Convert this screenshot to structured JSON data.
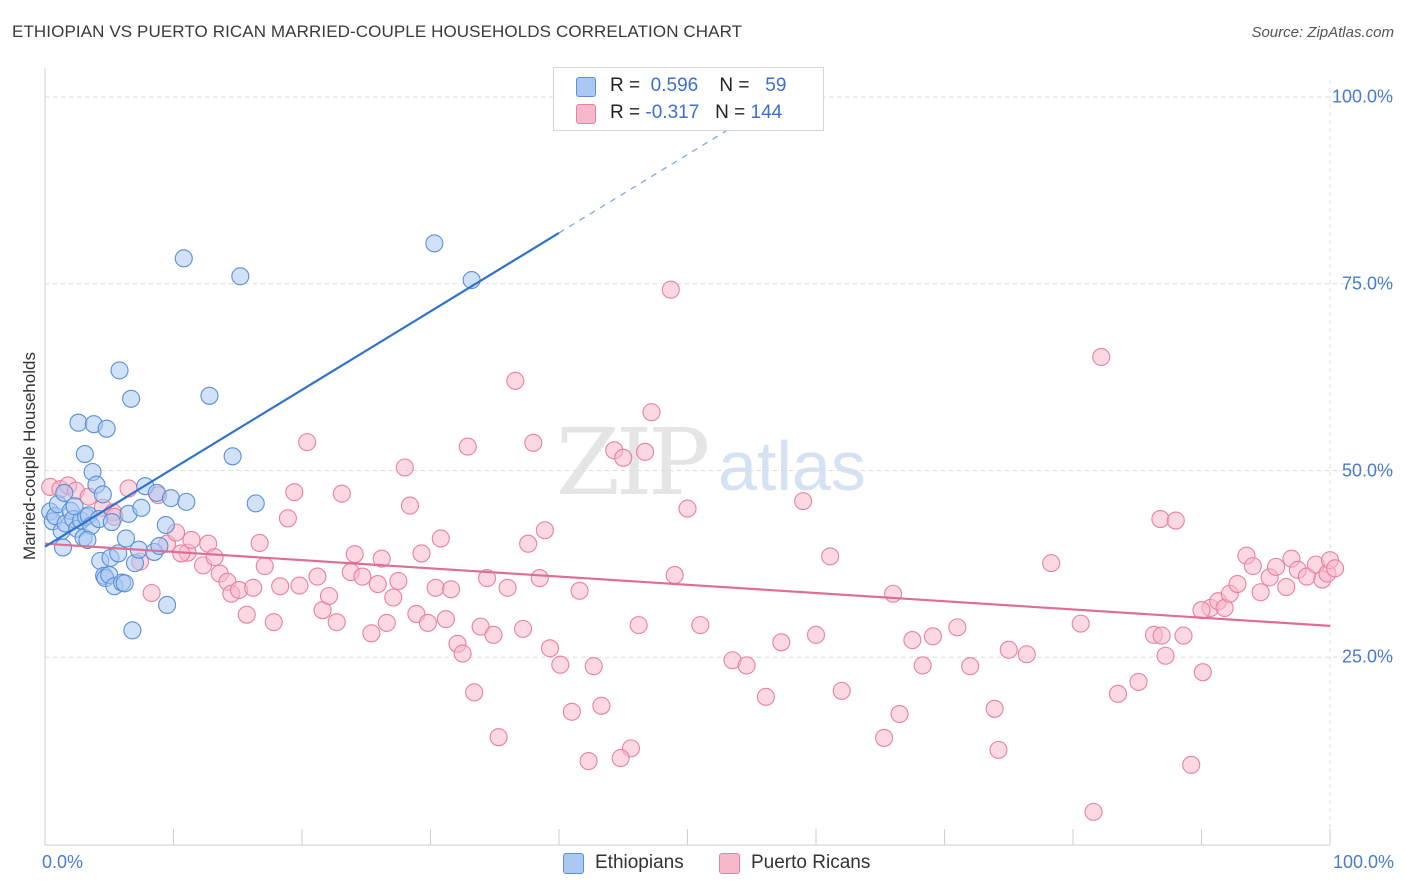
{
  "title": "ETHIOPIAN VS PUERTO RICAN MARRIED-COUPLE HOUSEHOLDS CORRELATION CHART",
  "source": "Source: ZipAtlas.com",
  "watermark": {
    "zip": "ZIP",
    "atlas": "atlas"
  },
  "colors": {
    "ethiopian_fill": "#aac8f2",
    "ethiopian_stroke": "#5b8fd6",
    "ethiopian_line": "#2f72cc",
    "puerto_fill": "#f7b8cb",
    "puerto_stroke": "#e8819f",
    "puerto_line": "#e06d93",
    "tick_text": "#4a7bd0",
    "grid": "#dcdcdc"
  },
  "legend": {
    "rows": [
      {
        "r_label": "R =",
        "r_value": "0.596",
        "n_label": "N =",
        "n_value": "59"
      },
      {
        "r_label": "R =",
        "r_value": "-0.317",
        "n_label": "N =",
        "n_value": "144"
      }
    ]
  },
  "bottom_legend": {
    "ethiopians": "Ethiopians",
    "puerto_ricans": "Puerto Ricans"
  },
  "chart_data": {
    "type": "scatter",
    "title": "ETHIOPIAN VS PUERTO RICAN MARRIED-COUPLE HOUSEHOLDS CORRELATION CHART",
    "xlabel": "",
    "ylabel": "Married-couple Households",
    "xlim": [
      0,
      100
    ],
    "ylim": [
      0,
      100
    ],
    "x_tick_labels": [
      "0.0%",
      "100.0%"
    ],
    "y_tick_labels": [
      "25.0%",
      "50.0%",
      "75.0%",
      "100.0%"
    ],
    "y_tick_values": [
      25,
      50,
      75,
      100
    ],
    "grid": "horizontal dashed",
    "legend_placement": "top-center",
    "series": [
      {
        "name": "Ethiopians",
        "r": 0.596,
        "n": 59,
        "trend": {
          "x": [
            0,
            40
          ],
          "y": [
            39.8,
            81.8
          ],
          "dashed_to": [
            100,
            105
          ]
        },
        "points": [
          [
            0.4,
            44.5
          ],
          [
            0.6,
            43.2
          ],
          [
            0.8,
            43.9
          ],
          [
            1.0,
            45.5
          ],
          [
            1.3,
            41.9
          ],
          [
            1.4,
            39.7
          ],
          [
            1.6,
            42.9
          ],
          [
            2.0,
            44.6
          ],
          [
            2.2,
            43.5
          ],
          [
            2.5,
            42.2
          ],
          [
            2.6,
            56.4
          ],
          [
            2.8,
            43.3
          ],
          [
            3.0,
            41.0
          ],
          [
            3.1,
            52.2
          ],
          [
            3.2,
            43.8
          ],
          [
            3.4,
            44.0
          ],
          [
            3.6,
            42.6
          ],
          [
            3.7,
            49.8
          ],
          [
            3.8,
            56.2
          ],
          [
            4.0,
            48.1
          ],
          [
            4.2,
            43.5
          ],
          [
            4.3,
            37.9
          ],
          [
            4.5,
            46.8
          ],
          [
            4.6,
            35.9
          ],
          [
            4.7,
            35.6
          ],
          [
            4.8,
            55.6
          ],
          [
            5.0,
            36.0
          ],
          [
            5.1,
            38.3
          ],
          [
            5.2,
            43.1
          ],
          [
            5.4,
            34.5
          ],
          [
            5.7,
            38.9
          ],
          [
            5.8,
            63.4
          ],
          [
            6.0,
            35.0
          ],
          [
            6.2,
            34.9
          ],
          [
            6.3,
            40.9
          ],
          [
            6.5,
            44.2
          ],
          [
            6.7,
            59.6
          ],
          [
            6.8,
            28.6
          ],
          [
            7.0,
            37.6
          ],
          [
            7.3,
            39.4
          ],
          [
            7.5,
            45.0
          ],
          [
            7.8,
            47.9
          ],
          [
            8.5,
            39.1
          ],
          [
            8.7,
            47.0
          ],
          [
            8.9,
            39.9
          ],
          [
            9.4,
            42.7
          ],
          [
            9.5,
            32.0
          ],
          [
            9.8,
            46.3
          ],
          [
            10.8,
            78.4
          ],
          [
            11.0,
            45.8
          ],
          [
            12.8,
            60.0
          ],
          [
            14.6,
            51.9
          ],
          [
            15.2,
            76.0
          ],
          [
            16.4,
            45.6
          ],
          [
            30.3,
            80.4
          ],
          [
            33.2,
            75.5
          ],
          [
            1.5,
            47.0
          ],
          [
            2.3,
            45.2
          ],
          [
            3.3,
            40.7
          ]
        ]
      },
      {
        "name": "Puerto Ricans",
        "r": -0.317,
        "n": 144,
        "trend": {
          "x": [
            0,
            100
          ],
          "y": [
            40.2,
            29.2
          ]
        },
        "points": [
          [
            0.4,
            47.8
          ],
          [
            1.2,
            47.5
          ],
          [
            1.8,
            48.0
          ],
          [
            2.4,
            47.3
          ],
          [
            3.4,
            46.5
          ],
          [
            4.5,
            45.0
          ],
          [
            5.3,
            44.4
          ],
          [
            5.4,
            43.8
          ],
          [
            6.5,
            47.6
          ],
          [
            7.4,
            37.8
          ],
          [
            8.3,
            33.6
          ],
          [
            8.8,
            46.7
          ],
          [
            9.5,
            40.2
          ],
          [
            10.2,
            41.7
          ],
          [
            11.1,
            39.0
          ],
          [
            11.4,
            40.7
          ],
          [
            12.3,
            37.3
          ],
          [
            12.7,
            40.2
          ],
          [
            13.2,
            38.4
          ],
          [
            13.6,
            36.2
          ],
          [
            14.2,
            35.1
          ],
          [
            14.5,
            33.5
          ],
          [
            15.1,
            34.0
          ],
          [
            15.7,
            30.7
          ],
          [
            16.2,
            34.3
          ],
          [
            16.7,
            40.3
          ],
          [
            17.1,
            37.2
          ],
          [
            17.8,
            29.7
          ],
          [
            18.3,
            34.5
          ],
          [
            18.9,
            43.6
          ],
          [
            19.4,
            47.1
          ],
          [
            19.8,
            34.6
          ],
          [
            20.4,
            53.8
          ],
          [
            21.2,
            35.8
          ],
          [
            21.6,
            31.3
          ],
          [
            22.1,
            33.2
          ],
          [
            22.7,
            29.7
          ],
          [
            23.1,
            46.9
          ],
          [
            23.8,
            36.4
          ],
          [
            24.1,
            38.8
          ],
          [
            24.7,
            35.8
          ],
          [
            25.4,
            28.2
          ],
          [
            25.9,
            34.8
          ],
          [
            26.2,
            38.2
          ],
          [
            26.6,
            29.6
          ],
          [
            27.1,
            33.0
          ],
          [
            27.5,
            35.2
          ],
          [
            28.0,
            50.4
          ],
          [
            28.4,
            45.3
          ],
          [
            28.9,
            30.8
          ],
          [
            29.3,
            38.9
          ],
          [
            29.8,
            29.6
          ],
          [
            30.4,
            34.3
          ],
          [
            30.8,
            40.9
          ],
          [
            31.2,
            30.1
          ],
          [
            31.6,
            34.1
          ],
          [
            32.1,
            26.8
          ],
          [
            32.5,
            25.5
          ],
          [
            32.9,
            53.2
          ],
          [
            33.4,
            20.3
          ],
          [
            33.9,
            29.1
          ],
          [
            34.4,
            35.6
          ],
          [
            34.9,
            28.0
          ],
          [
            35.3,
            14.3
          ],
          [
            36.0,
            34.3
          ],
          [
            36.6,
            62.0
          ],
          [
            37.2,
            28.8
          ],
          [
            37.6,
            40.2
          ],
          [
            38.0,
            53.7
          ],
          [
            38.5,
            35.6
          ],
          [
            38.9,
            42.0
          ],
          [
            39.3,
            26.2
          ],
          [
            40.1,
            24.0
          ],
          [
            41.0,
            17.7
          ],
          [
            41.6,
            33.9
          ],
          [
            42.3,
            11.1
          ],
          [
            42.7,
            23.8
          ],
          [
            43.3,
            18.5
          ],
          [
            44.3,
            52.7
          ],
          [
            45.0,
            51.7
          ],
          [
            45.6,
            12.8
          ],
          [
            46.2,
            29.3
          ],
          [
            46.7,
            52.5
          ],
          [
            47.2,
            57.8
          ],
          [
            48.7,
            74.2
          ],
          [
            50.0,
            44.9
          ],
          [
            51.0,
            29.3
          ],
          [
            53.5,
            24.6
          ],
          [
            54.6,
            23.9
          ],
          [
            56.1,
            19.7
          ],
          [
            57.3,
            27.0
          ],
          [
            59.0,
            45.9
          ],
          [
            61.1,
            38.5
          ],
          [
            62.0,
            20.5
          ],
          [
            65.3,
            14.2
          ],
          [
            66.0,
            33.5
          ],
          [
            66.5,
            17.4
          ],
          [
            68.3,
            23.9
          ],
          [
            69.1,
            27.8
          ],
          [
            71.0,
            29.0
          ],
          [
            72.0,
            23.8
          ],
          [
            73.9,
            18.1
          ],
          [
            74.2,
            12.6
          ],
          [
            76.4,
            25.4
          ],
          [
            78.3,
            37.6
          ],
          [
            80.6,
            29.5
          ],
          [
            81.6,
            4.3
          ],
          [
            82.2,
            65.2
          ],
          [
            83.5,
            20.1
          ],
          [
            85.1,
            21.7
          ],
          [
            86.3,
            28.0
          ],
          [
            86.8,
            43.5
          ],
          [
            87.2,
            25.2
          ],
          [
            88.0,
            43.3
          ],
          [
            88.6,
            27.9
          ],
          [
            89.2,
            10.6
          ],
          [
            90.1,
            23.0
          ],
          [
            90.7,
            31.6
          ],
          [
            91.3,
            32.5
          ],
          [
            91.8,
            31.6
          ],
          [
            92.2,
            33.5
          ],
          [
            92.8,
            34.8
          ],
          [
            93.5,
            38.6
          ],
          [
            94.0,
            37.2
          ],
          [
            94.6,
            33.7
          ],
          [
            95.3,
            35.7
          ],
          [
            95.8,
            37.1
          ],
          [
            96.6,
            34.4
          ],
          [
            97.0,
            38.2
          ],
          [
            97.5,
            36.7
          ],
          [
            98.2,
            35.8
          ],
          [
            98.9,
            37.4
          ],
          [
            99.4,
            35.4
          ],
          [
            99.8,
            36.2
          ],
          [
            100.0,
            38.0
          ],
          [
            100.4,
            36.9
          ],
          [
            90.0,
            31.3
          ],
          [
            86.9,
            27.9
          ],
          [
            75.0,
            26.0
          ],
          [
            67.5,
            27.3
          ],
          [
            44.8,
            11.5
          ],
          [
            60.0,
            28.0
          ],
          [
            10.6,
            38.9
          ],
          [
            49.0,
            36.0
          ]
        ]
      }
    ]
  }
}
